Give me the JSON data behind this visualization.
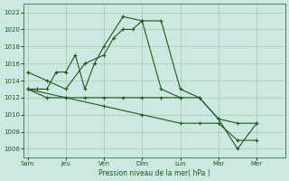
{
  "background_color": "#cce8e0",
  "grid_color": "#a8c8a8",
  "line_color": "#1a5c1a",
  "xlabel": "Pression niveau de la mer( hPa )",
  "ylim": [
    1005,
    1023
  ],
  "yticks": [
    1006,
    1008,
    1010,
    1012,
    1014,
    1016,
    1018,
    1020,
    1022
  ],
  "x_labels": [
    "Sam",
    "Jeu",
    "Ven",
    "Dim",
    "Lun",
    "Mar",
    "Mer"
  ],
  "x_ticks": [
    0,
    2,
    4,
    6,
    8,
    10,
    12
  ],
  "xlim": [
    -0.2,
    13.5
  ],
  "s1_x": [
    0,
    1,
    2,
    3,
    4,
    4.5,
    5,
    5.5,
    6,
    7,
    8,
    9,
    10,
    11,
    12
  ],
  "s1_y": [
    1015,
    1014,
    1013,
    1016,
    1017,
    1019,
    1020,
    1020,
    1021,
    1021,
    1013,
    1012,
    1009.5,
    1006,
    1009
  ],
  "s2_x": [
    0,
    0.5,
    1,
    1.5,
    2,
    2.5,
    3,
    3.5,
    4,
    5,
    6,
    7,
    8
  ],
  "s2_y": [
    1013,
    1013,
    1013,
    1015,
    1015,
    1017,
    1013,
    1016,
    1018,
    1021.5,
    1021,
    1013,
    1012
  ],
  "s3_x": [
    0,
    1,
    2,
    3,
    4,
    5,
    6,
    7,
    8,
    9,
    10,
    11,
    12
  ],
  "s3_y": [
    1013,
    1012,
    1012,
    1012,
    1012,
    1012,
    1012,
    1012,
    1012,
    1012,
    1009.5,
    1009,
    1009
  ],
  "s4_x": [
    0,
    2,
    4,
    6,
    8,
    9,
    10,
    11,
    12
  ],
  "s4_y": [
    1013,
    1012,
    1011,
    1010,
    1009,
    1009,
    1009,
    1007,
    1007
  ]
}
